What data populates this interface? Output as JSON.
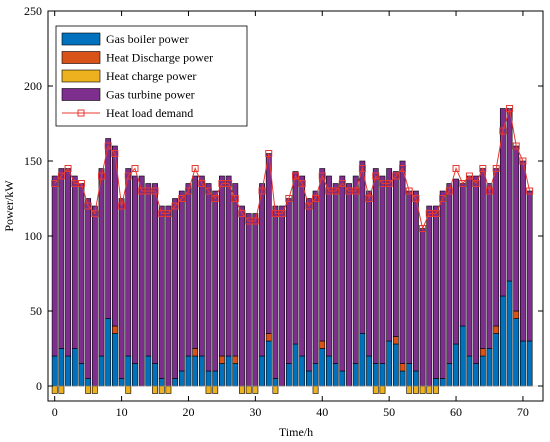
{
  "chart_data": {
    "type": "bar",
    "stacked": true,
    "xlabel": "Time/h",
    "ylabel": "Power/kW",
    "xlim": [
      -1,
      73
    ],
    "ylim": [
      -10,
      250
    ],
    "xticks": [
      0,
      10,
      20,
      30,
      40,
      50,
      60,
      70
    ],
    "yticks": [
      0,
      50,
      100,
      150,
      200,
      250
    ],
    "grid": false,
    "legend_position": "top-left",
    "x": [
      0,
      1,
      2,
      3,
      4,
      5,
      6,
      7,
      8,
      9,
      10,
      11,
      12,
      13,
      14,
      15,
      16,
      17,
      18,
      19,
      20,
      21,
      22,
      23,
      24,
      25,
      26,
      27,
      28,
      29,
      30,
      31,
      32,
      33,
      34,
      35,
      36,
      37,
      38,
      39,
      40,
      41,
      42,
      43,
      44,
      45,
      46,
      47,
      48,
      49,
      50,
      51,
      52,
      53,
      54,
      55,
      56,
      57,
      58,
      59,
      60,
      61,
      62,
      63,
      64,
      65,
      66,
      67,
      68,
      69,
      70,
      71
    ],
    "series": [
      {
        "name": "Gas boiler power",
        "color": "#0072BD",
        "values": [
          20,
          25,
          20,
          25,
          15,
          5,
          0,
          20,
          45,
          35,
          5,
          20,
          15,
          0,
          20,
          15,
          5,
          0,
          5,
          10,
          20,
          20,
          20,
          10,
          10,
          15,
          20,
          15,
          0,
          0,
          0,
          20,
          30,
          5,
          0,
          15,
          28,
          20,
          10,
          15,
          25,
          20,
          15,
          10,
          0,
          15,
          35,
          20,
          15,
          15,
          30,
          28,
          10,
          15,
          10,
          0,
          0,
          5,
          5,
          15,
          28,
          40,
          20,
          15,
          20,
          25,
          35,
          60,
          70,
          45,
          30,
          30
        ]
      },
      {
        "name": "Heat Discharge power",
        "color": "#D95319",
        "values": [
          0,
          0,
          0,
          0,
          0,
          0,
          0,
          0,
          0,
          5,
          0,
          0,
          0,
          0,
          0,
          0,
          0,
          0,
          0,
          0,
          0,
          5,
          0,
          0,
          0,
          5,
          0,
          5,
          0,
          0,
          0,
          0,
          5,
          0,
          0,
          0,
          0,
          0,
          0,
          0,
          5,
          0,
          0,
          0,
          0,
          0,
          0,
          0,
          0,
          0,
          0,
          5,
          5,
          0,
          0,
          0,
          0,
          0,
          0,
          0,
          0,
          0,
          0,
          0,
          5,
          0,
          5,
          0,
          0,
          5,
          0,
          0
        ]
      },
      {
        "name": "Heat charge power",
        "color": "#EDB120",
        "values": [
          -5,
          -5,
          0,
          0,
          0,
          -5,
          -5,
          0,
          0,
          0,
          0,
          -5,
          0,
          0,
          0,
          -5,
          -5,
          -5,
          0,
          0,
          0,
          0,
          0,
          -5,
          -5,
          0,
          0,
          0,
          -5,
          -5,
          -5,
          0,
          0,
          -5,
          0,
          0,
          0,
          0,
          0,
          -5,
          0,
          0,
          0,
          0,
          0,
          0,
          0,
          0,
          -5,
          -5,
          0,
          0,
          0,
          -5,
          -5,
          -5,
          -5,
          -5,
          0,
          0,
          0,
          0,
          0,
          0,
          0,
          0,
          0,
          0,
          0,
          0,
          0,
          0
        ]
      },
      {
        "name": "Gas turbine power",
        "color": "#7E2F8E",
        "values": [
          120,
          120,
          125,
          115,
          120,
          120,
          120,
          125,
          120,
          120,
          120,
          125,
          125,
          140,
          115,
          120,
          115,
          120,
          120,
          120,
          115,
          115,
          120,
          125,
          120,
          120,
          120,
          115,
          120,
          115,
          115,
          115,
          120,
          115,
          120,
          110,
          115,
          120,
          115,
          115,
          115,
          120,
          120,
          130,
          135,
          125,
          115,
          110,
          130,
          125,
          115,
          110,
          135,
          115,
          120,
          105,
          120,
          115,
          125,
          120,
          110,
          95,
          120,
          125,
          120,
          110,
          105,
          125,
          115,
          110,
          120,
          100
        ]
      },
      {
        "name": "Heat load demand",
        "color": "#E8382F",
        "type": "line",
        "marker": "square",
        "values": [
          135,
          140,
          145,
          135,
          135,
          120,
          115,
          140,
          160,
          155,
          120,
          140,
          145,
          130,
          130,
          130,
          115,
          115,
          120,
          125,
          130,
          145,
          135,
          130,
          125,
          135,
          135,
          125,
          115,
          110,
          110,
          130,
          155,
          115,
          115,
          125,
          140,
          135,
          120,
          125,
          140,
          130,
          130,
          135,
          130,
          130,
          145,
          125,
          140,
          135,
          135,
          140,
          145,
          130,
          125,
          105,
          115,
          115,
          125,
          130,
          145,
          135,
          140,
          135,
          145,
          130,
          145,
          170,
          185,
          160,
          150,
          130
        ]
      }
    ]
  }
}
